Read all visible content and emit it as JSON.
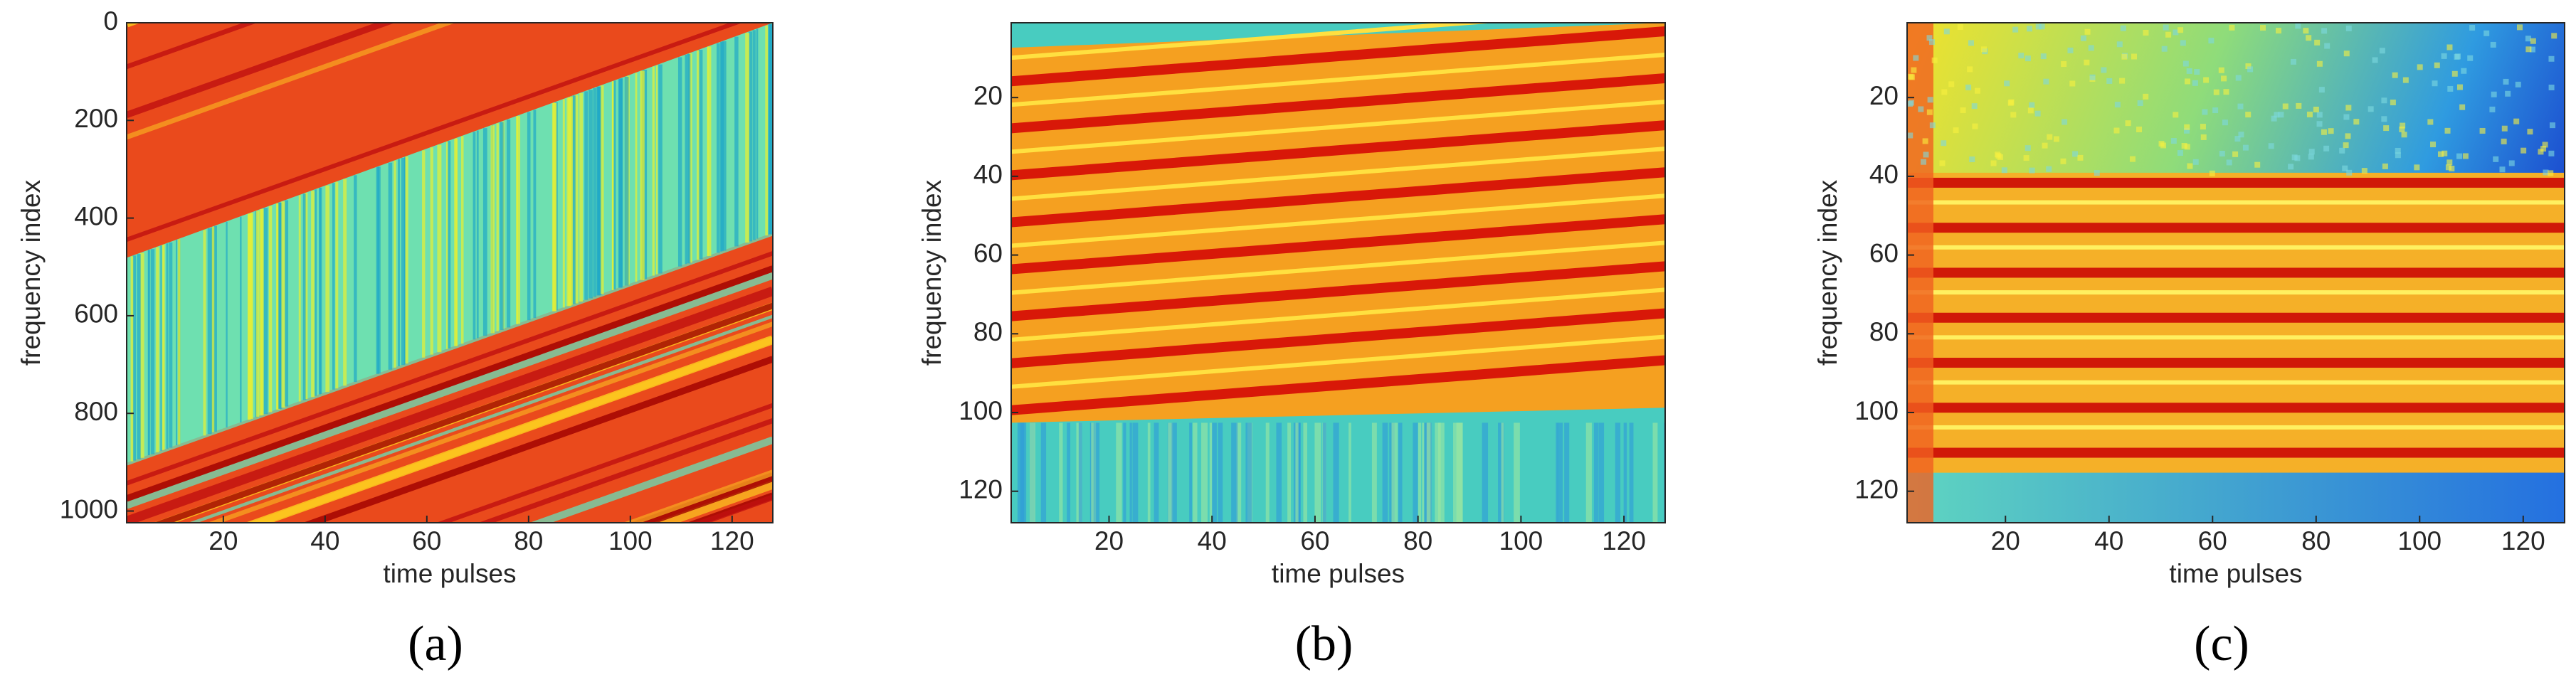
{
  "chart_data": [
    {
      "type": "heatmap",
      "caption": "(a)",
      "xlabel": "time pulses",
      "ylabel": "frequency index",
      "xlim": [
        1,
        128
      ],
      "xticks": [
        20,
        40,
        60,
        80,
        100,
        120
      ],
      "ylim": [
        0,
        1024
      ],
      "yticks": [
        0,
        200,
        400,
        600,
        800,
        1000
      ],
      "y_reversed": true
    },
    {
      "type": "heatmap",
      "caption": "(b)",
      "xlabel": "time pulses",
      "ylabel": "frequency index",
      "xlim": [
        1,
        128
      ],
      "xticks": [
        20,
        40,
        60,
        80,
        100,
        120
      ],
      "ylim": [
        1,
        128
      ],
      "yticks": [
        20,
        40,
        60,
        80,
        100,
        120
      ],
      "y_reversed": true
    },
    {
      "type": "heatmap",
      "caption": "(c)",
      "xlabel": "time pulses",
      "ylabel": "frequency index",
      "xlim": [
        1,
        128
      ],
      "xticks": [
        20,
        40,
        60,
        80,
        100,
        120
      ],
      "ylim": [
        1,
        128
      ],
      "yticks": [
        20,
        40,
        60,
        80,
        100,
        120
      ],
      "y_reversed": true
    }
  ]
}
